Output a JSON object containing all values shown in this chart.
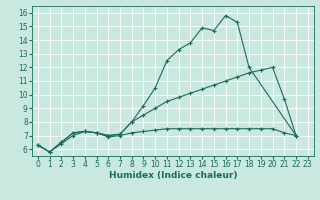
{
  "xlabel": "Humidex (Indice chaleur)",
  "bg_color": "#c8e8e0",
  "grid_color": "#ffffff",
  "line_color": "#1a6b5a",
  "xlim": [
    -0.5,
    23.5
  ],
  "ylim": [
    5.5,
    16.5
  ],
  "xticks": [
    0,
    1,
    2,
    3,
    4,
    5,
    6,
    7,
    8,
    9,
    10,
    11,
    12,
    13,
    14,
    15,
    16,
    17,
    18,
    19,
    20,
    21,
    22,
    23
  ],
  "yticks": [
    6,
    7,
    8,
    9,
    10,
    11,
    12,
    13,
    14,
    15,
    16
  ],
  "line1_x": [
    0,
    1,
    2,
    3,
    4,
    5,
    6,
    7,
    8,
    9,
    10,
    11,
    12,
    13,
    14,
    15,
    16,
    17,
    18,
    22
  ],
  "line1_y": [
    6.3,
    5.8,
    6.5,
    7.2,
    7.3,
    7.2,
    7.0,
    7.1,
    8.0,
    9.2,
    10.5,
    12.5,
    13.3,
    13.8,
    14.9,
    14.7,
    15.8,
    15.3,
    12.0,
    7.0
  ],
  "line2_x": [
    0,
    1,
    2,
    3,
    4,
    5,
    6,
    7,
    8,
    9,
    10,
    11,
    12,
    13,
    14,
    15,
    16,
    17,
    18,
    19,
    20,
    21,
    22
  ],
  "line2_y": [
    6.3,
    5.8,
    6.5,
    7.2,
    7.3,
    7.2,
    7.0,
    7.1,
    8.0,
    8.5,
    9.0,
    9.5,
    9.8,
    10.1,
    10.4,
    10.7,
    11.0,
    11.3,
    11.6,
    11.8,
    12.0,
    9.7,
    7.0
  ],
  "line3_x": [
    0,
    1,
    2,
    3,
    4,
    5,
    6,
    7,
    8,
    9,
    10,
    11,
    12,
    13,
    14,
    15,
    16,
    17,
    18,
    19,
    20,
    21,
    22
  ],
  "line3_y": [
    6.3,
    5.8,
    6.4,
    7.0,
    7.3,
    7.2,
    6.9,
    7.0,
    7.2,
    7.3,
    7.4,
    7.5,
    7.5,
    7.5,
    7.5,
    7.5,
    7.5,
    7.5,
    7.5,
    7.5,
    7.5,
    7.2,
    7.0
  ]
}
